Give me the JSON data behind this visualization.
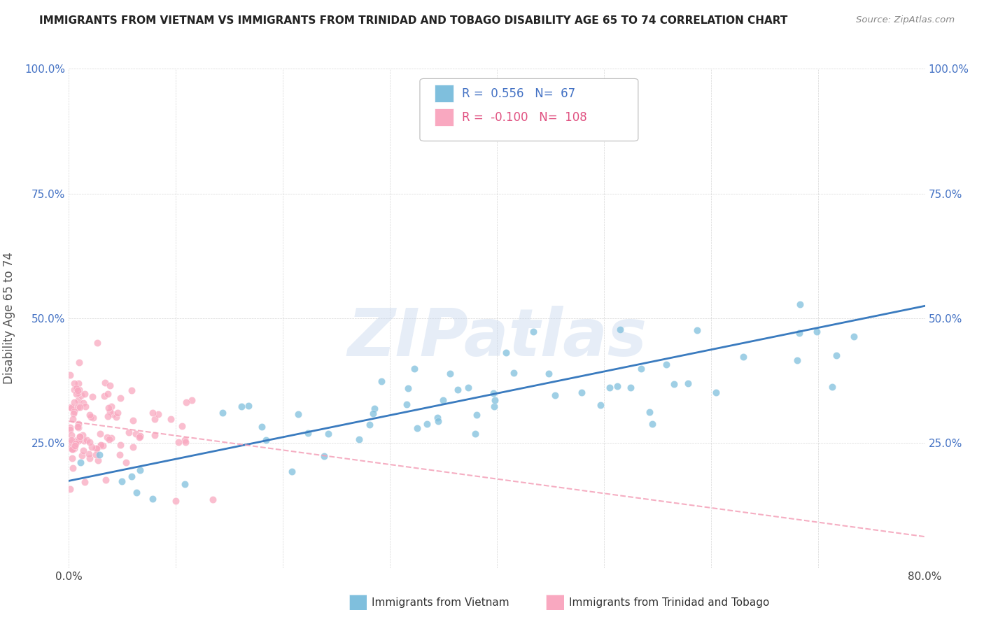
{
  "title": "IMMIGRANTS FROM VIETNAM VS IMMIGRANTS FROM TRINIDAD AND TOBAGO DISABILITY AGE 65 TO 74 CORRELATION CHART",
  "source": "Source: ZipAtlas.com",
  "ylabel": "Disability Age 65 to 74",
  "xlim": [
    0.0,
    0.8
  ],
  "ylim": [
    0.0,
    1.0
  ],
  "xticks": [
    0.0,
    0.1,
    0.2,
    0.3,
    0.4,
    0.5,
    0.6,
    0.7,
    0.8
  ],
  "yticks": [
    0.0,
    0.25,
    0.5,
    0.75,
    1.0
  ],
  "legend1_r": "0.556",
  "legend1_n": "67",
  "legend2_r": "-0.100",
  "legend2_n": "108",
  "legend1_label": "Immigrants from Vietnam",
  "legend2_label": "Immigrants from Trinidad and Tobago",
  "color_vietnam": "#7fbfdd",
  "color_tt": "#f9a8c0",
  "trend_vietnam_color": "#3a7bbf",
  "trend_tt_color": "#f4a0b8",
  "watermark": "ZIPatlas",
  "background_color": "#ffffff"
}
